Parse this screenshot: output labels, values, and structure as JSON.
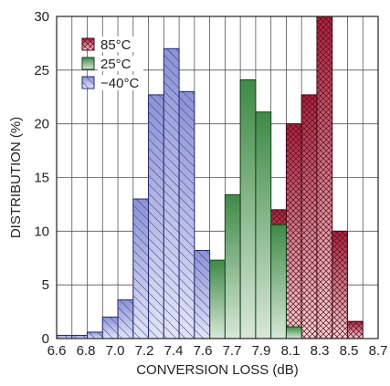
{
  "chart_data": {
    "type": "bar",
    "subtype": "overlaid-histogram",
    "xlabel": "CONVERSION LOSS (dB)",
    "ylabel": "DISTRIBUTION (%)",
    "xlim": [
      6.6,
      8.7
    ],
    "ylim": [
      0,
      30
    ],
    "x_ticks": [
      "6.6",
      "6.8",
      "7.0",
      "7.2",
      "7.4",
      "7.6",
      "7.7",
      "7.9",
      "8.1",
      "8.3",
      "8.5",
      "8.7"
    ],
    "y_ticks": [
      "0",
      "5",
      "10",
      "15",
      "20",
      "25",
      "30"
    ],
    "bin_width": 0.1,
    "grid": true,
    "legend_position": "top-left",
    "series": [
      {
        "name": "85°C",
        "color": "#b5334a",
        "edges": [
          8.0,
          8.1,
          8.2,
          8.3,
          8.4,
          8.5,
          8.6,
          8.7
        ],
        "values": [
          12.0,
          20.0,
          22.7,
          30.0,
          10.0,
          1.6,
          0.0
        ]
      },
      {
        "name": "25°C",
        "color": "#4f9455",
        "edges": [
          7.6,
          7.7,
          7.8,
          7.9,
          8.0,
          8.1,
          8.2
        ],
        "values": [
          7.3,
          13.4,
          24.1,
          21.1,
          10.6,
          1.1
        ]
      },
      {
        "name": "−40°C",
        "color": "#8c92d4",
        "edges": [
          6.6,
          6.7,
          6.8,
          6.9,
          7.0,
          7.1,
          7.2,
          7.3,
          7.4,
          7.5,
          7.6,
          7.7
        ],
        "values": [
          0.3,
          0.3,
          0.6,
          2.0,
          3.6,
          13.0,
          22.7,
          27.0,
          23.0,
          8.2,
          0.0
        ]
      }
    ]
  }
}
